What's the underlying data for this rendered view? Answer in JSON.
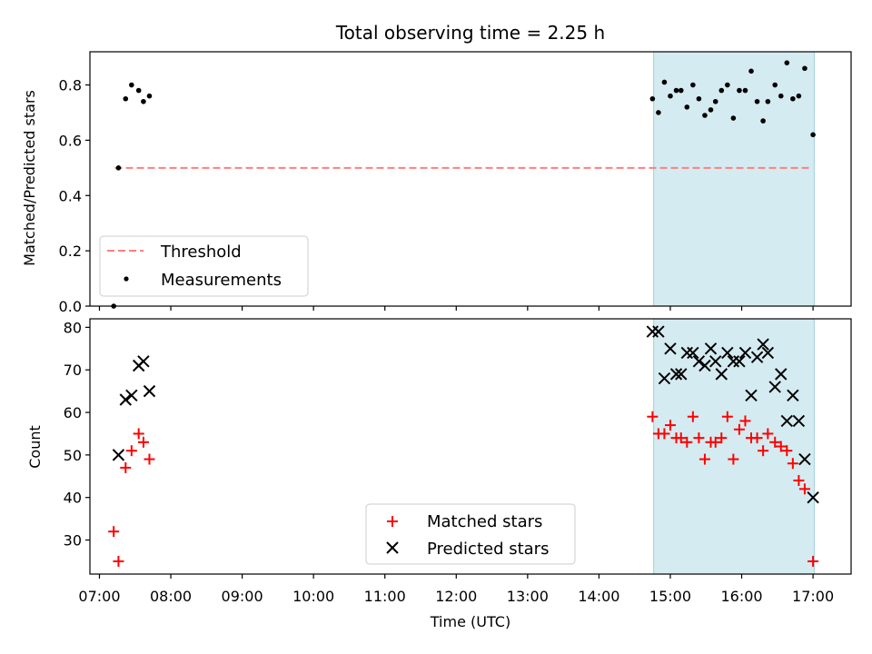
{
  "figure": {
    "title": "Total observing time = 2.25 h"
  },
  "chart_data": [
    {
      "type": "scatter",
      "ylabel": "Matched/Predicted stars",
      "xlim": [
        "06:52",
        "17:32"
      ],
      "ylim": [
        0,
        0.92
      ],
      "yticks": [
        "0.0",
        "0.2",
        "0.4",
        "0.6",
        "0.8"
      ],
      "shaded_region": {
        "x": [
          "14:46",
          "17:01"
        ],
        "color": "#d4ebf1"
      },
      "threshold": {
        "name": "Threshold",
        "value": 0.5,
        "x": [
          "07:13",
          "16:59"
        ],
        "color": "#ff7f7f"
      },
      "series": [
        {
          "name": "Measurements",
          "marker": "dot",
          "color": "#000000",
          "points": [
            [
              "07:12",
              0.0
            ],
            [
              "07:16",
              0.5
            ],
            [
              "07:22",
              0.75
            ],
            [
              "07:27",
              0.8
            ],
            [
              "07:33",
              0.78
            ],
            [
              "07:37",
              0.74
            ],
            [
              "07:42",
              0.76
            ],
            [
              "14:45",
              0.75
            ],
            [
              "14:50",
              0.7
            ],
            [
              "14:55",
              0.81
            ],
            [
              "15:00",
              0.76
            ],
            [
              "15:05",
              0.78
            ],
            [
              "15:09",
              0.78
            ],
            [
              "15:14",
              0.72
            ],
            [
              "15:19",
              0.8
            ],
            [
              "15:24",
              0.75
            ],
            [
              "15:29",
              0.69
            ],
            [
              "15:34",
              0.71
            ],
            [
              "15:38",
              0.74
            ],
            [
              "15:43",
              0.78
            ],
            [
              "15:48",
              0.8
            ],
            [
              "15:53",
              0.68
            ],
            [
              "15:58",
              0.78
            ],
            [
              "16:03",
              0.78
            ],
            [
              "16:08",
              0.85
            ],
            [
              "16:13",
              0.74
            ],
            [
              "16:18",
              0.67
            ],
            [
              "16:22",
              0.74
            ],
            [
              "16:28",
              0.8
            ],
            [
              "16:33",
              0.76
            ],
            [
              "16:38",
              0.88
            ],
            [
              "16:43",
              0.75
            ],
            [
              "16:48",
              0.76
            ],
            [
              "16:53",
              0.86
            ],
            [
              "17:00",
              0.62
            ]
          ]
        }
      ],
      "legend": {
        "placement": "lower-left",
        "entries": [
          "Threshold",
          "Measurements"
        ]
      }
    },
    {
      "type": "scatter",
      "xlabel": "Time (UTC)",
      "ylabel": "Count",
      "xlim": [
        "06:52",
        "17:32"
      ],
      "ylim": [
        22,
        82
      ],
      "yticks": [
        "30",
        "40",
        "50",
        "60",
        "70",
        "80"
      ],
      "xticks": [
        "07:00",
        "08:00",
        "09:00",
        "10:00",
        "11:00",
        "12:00",
        "13:00",
        "14:00",
        "15:00",
        "16:00",
        "17:00"
      ],
      "shaded_region": {
        "x": [
          "14:46",
          "17:01"
        ],
        "color": "#d4ebf1"
      },
      "series": [
        {
          "name": "Matched stars",
          "marker": "plus",
          "color": "#ff0000",
          "points": [
            [
              "07:12",
              32
            ],
            [
              "07:16",
              25
            ],
            [
              "07:22",
              47
            ],
            [
              "07:27",
              51
            ],
            [
              "07:33",
              55
            ],
            [
              "07:37",
              53
            ],
            [
              "07:42",
              49
            ],
            [
              "14:45",
              59
            ],
            [
              "14:50",
              55
            ],
            [
              "14:55",
              55
            ],
            [
              "15:00",
              57
            ],
            [
              "15:05",
              54
            ],
            [
              "15:09",
              54
            ],
            [
              "15:14",
              53
            ],
            [
              "15:19",
              59
            ],
            [
              "15:24",
              54
            ],
            [
              "15:29",
              49
            ],
            [
              "15:34",
              53
            ],
            [
              "15:38",
              53
            ],
            [
              "15:43",
              54
            ],
            [
              "15:48",
              59
            ],
            [
              "15:53",
              49
            ],
            [
              "15:58",
              56
            ],
            [
              "16:03",
              58
            ],
            [
              "16:08",
              54
            ],
            [
              "16:13",
              54
            ],
            [
              "16:18",
              51
            ],
            [
              "16:22",
              55
            ],
            [
              "16:28",
              53
            ],
            [
              "16:33",
              52
            ],
            [
              "16:38",
              51
            ],
            [
              "16:43",
              48
            ],
            [
              "16:48",
              44
            ],
            [
              "16:53",
              42
            ],
            [
              "17:00",
              25
            ]
          ]
        },
        {
          "name": "Predicted stars",
          "marker": "x",
          "color": "#000000",
          "points": [
            [
              "07:16",
              50
            ],
            [
              "07:22",
              63
            ],
            [
              "07:27",
              64
            ],
            [
              "07:33",
              71
            ],
            [
              "07:37",
              72
            ],
            [
              "07:42",
              65
            ],
            [
              "14:45",
              79
            ],
            [
              "14:50",
              79
            ],
            [
              "14:55",
              68
            ],
            [
              "15:00",
              75
            ],
            [
              "15:05",
              69
            ],
            [
              "15:09",
              69
            ],
            [
              "15:14",
              74
            ],
            [
              "15:19",
              74
            ],
            [
              "15:24",
              72
            ],
            [
              "15:29",
              71
            ],
            [
              "15:34",
              75
            ],
            [
              "15:38",
              72
            ],
            [
              "15:43",
              69
            ],
            [
              "15:48",
              74
            ],
            [
              "15:53",
              72
            ],
            [
              "15:58",
              72
            ],
            [
              "16:03",
              74
            ],
            [
              "16:08",
              64
            ],
            [
              "16:13",
              73
            ],
            [
              "16:18",
              76
            ],
            [
              "16:22",
              74
            ],
            [
              "16:28",
              66
            ],
            [
              "16:33",
              69
            ],
            [
              "16:38",
              58
            ],
            [
              "16:43",
              64
            ],
            [
              "16:48",
              58
            ],
            [
              "16:53",
              49
            ],
            [
              "17:00",
              40
            ]
          ]
        }
      ],
      "legend": {
        "placement": "lower-center",
        "entries": [
          "Matched stars",
          "Predicted stars"
        ]
      }
    }
  ]
}
